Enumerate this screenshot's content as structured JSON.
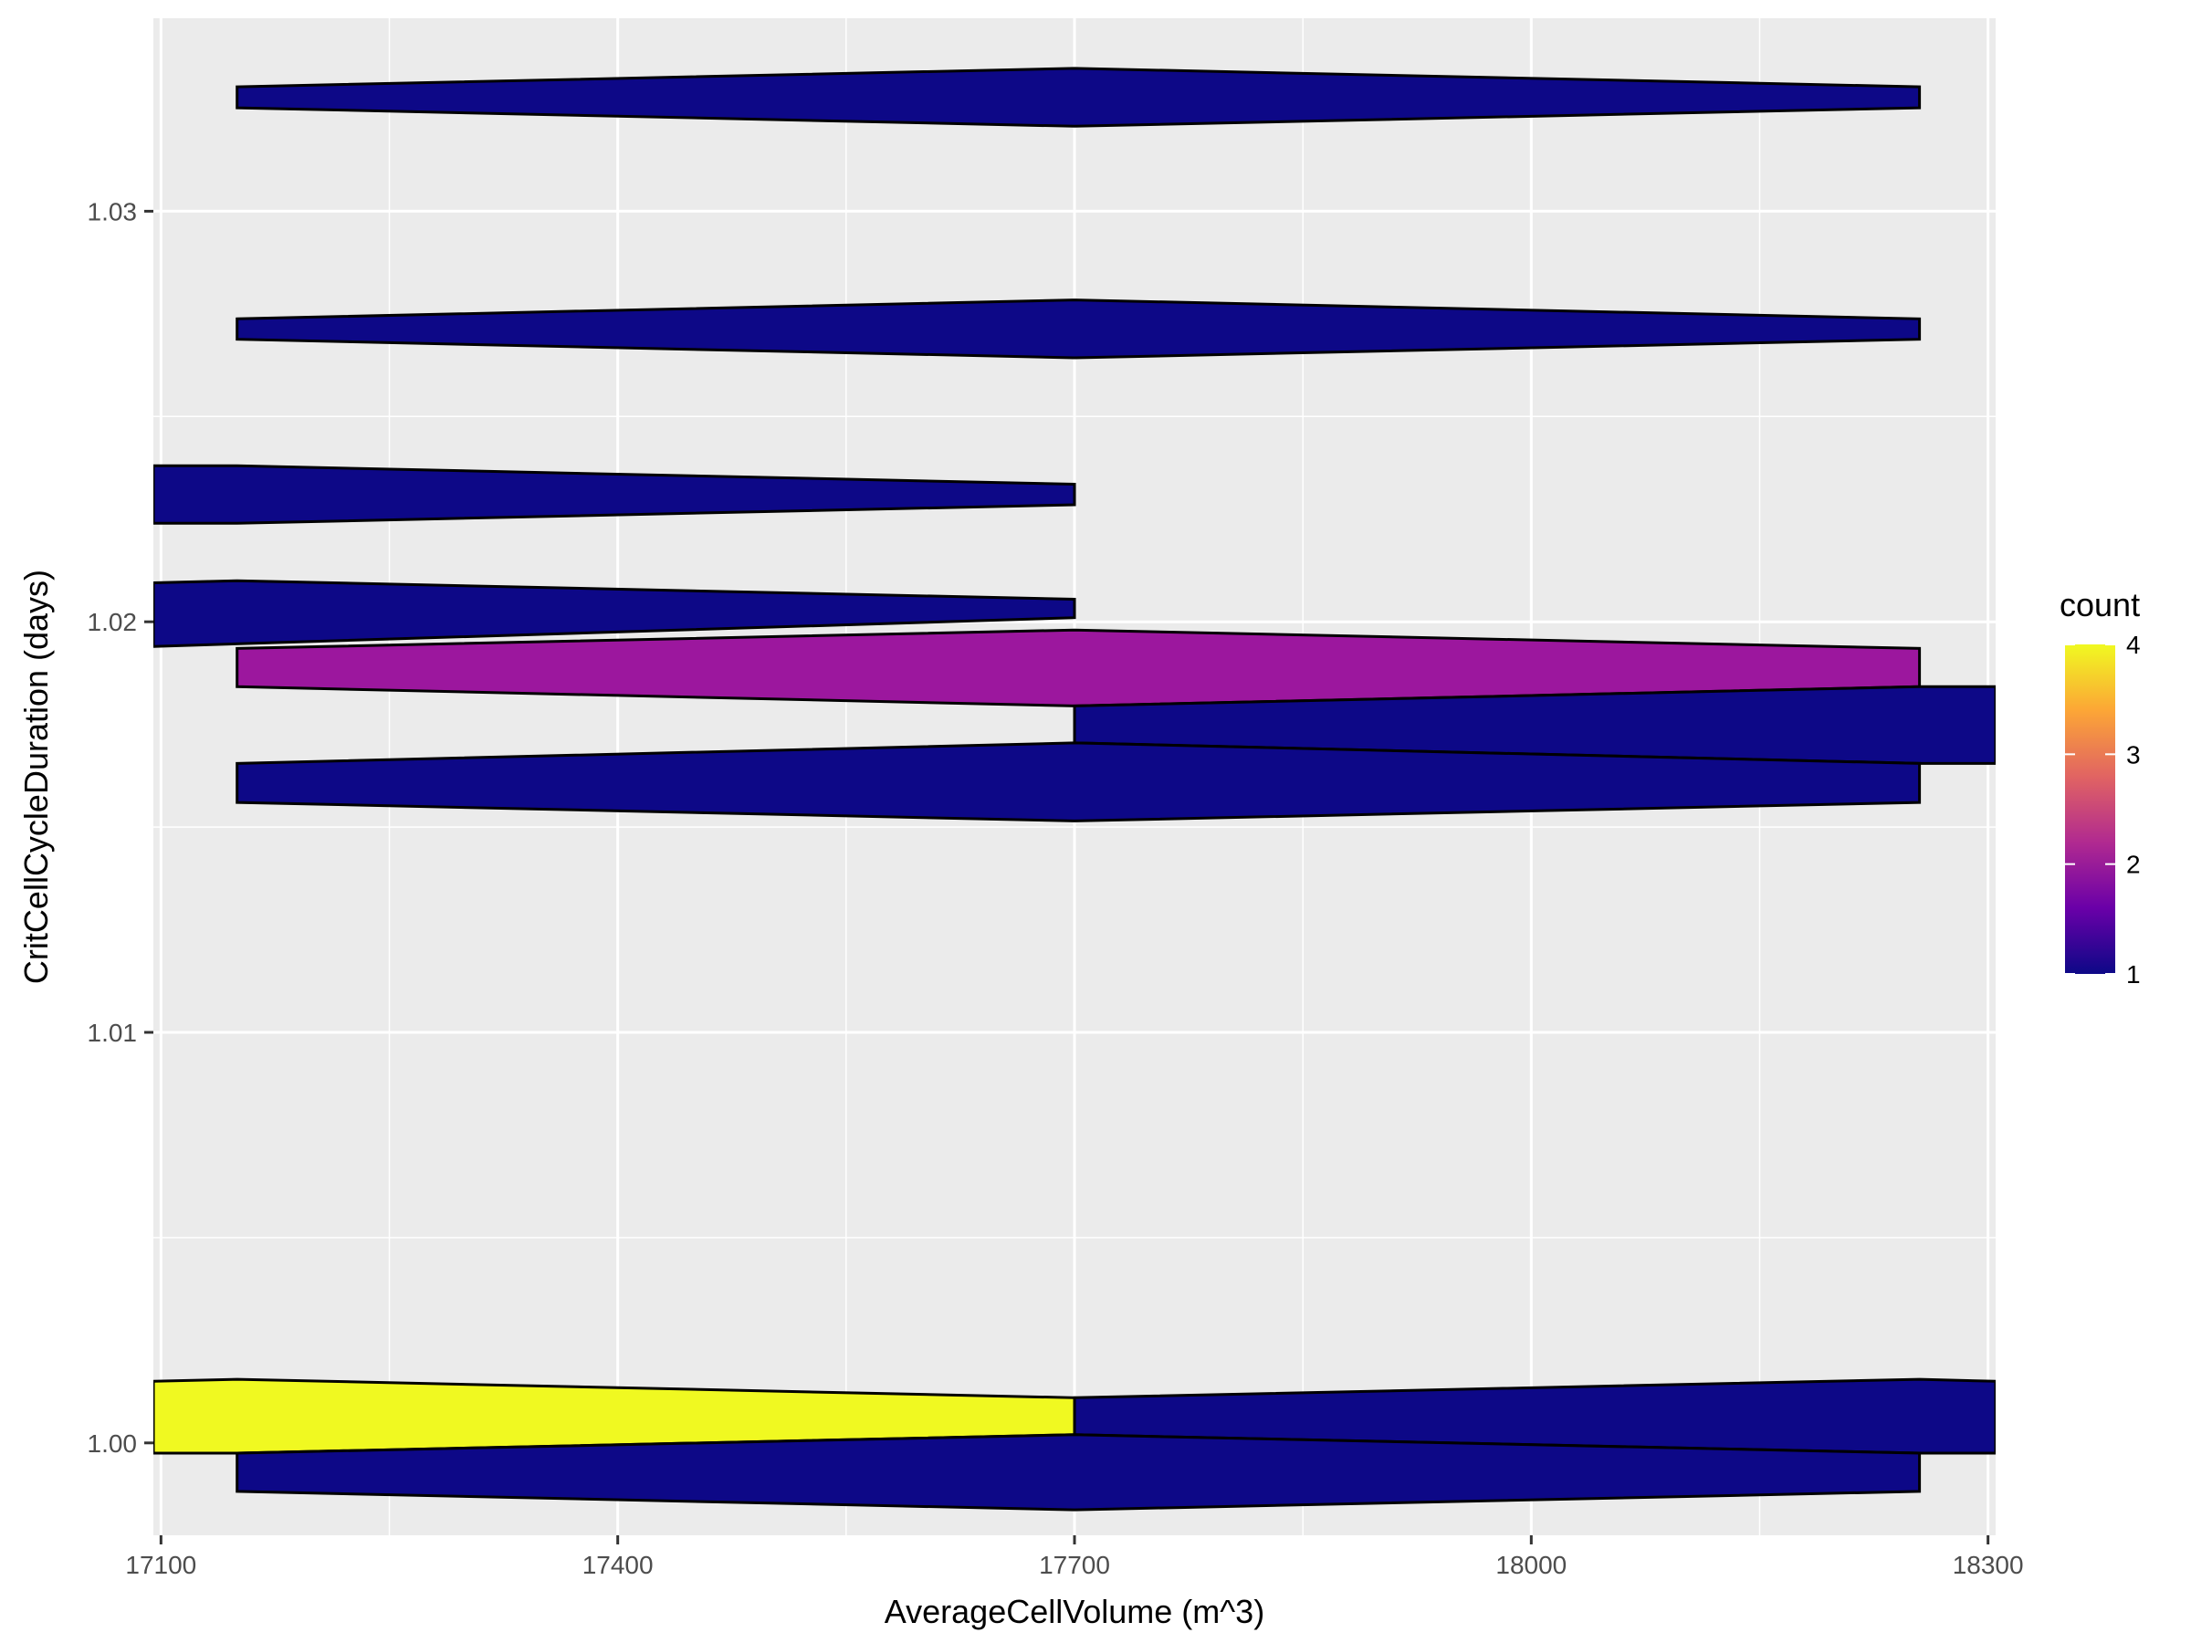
{
  "chart_data": {
    "type": "bin2d",
    "xlabel": "AverageCellVolume (m^3)",
    "ylabel": "CritCellCycleDuration (days)",
    "xlim": [
      17095,
      18305
    ],
    "ylim": [
      0.99775,
      1.0347
    ],
    "x_ticks": [
      {
        "value": 17100,
        "label": "17100"
      },
      {
        "value": 17400,
        "label": "17400"
      },
      {
        "value": 17700,
        "label": "17700"
      },
      {
        "value": 18000,
        "label": "18000"
      },
      {
        "value": 18300,
        "label": "18300"
      }
    ],
    "x_minor_ticks": [
      17250,
      17550,
      17850,
      18150
    ],
    "y_ticks": [
      {
        "value": 1.0,
        "label": "1.00"
      },
      {
        "value": 1.01,
        "label": "1.01"
      },
      {
        "value": 1.02,
        "label": "1.02"
      },
      {
        "value": 1.03,
        "label": "1.03"
      }
    ],
    "y_minor_ticks": [
      1.005,
      1.015,
      1.025
    ],
    "grid": true,
    "legend": {
      "title": "count",
      "position": "right",
      "min": 1,
      "max": 4,
      "breaks": [
        {
          "value": 1,
          "label": "1"
        },
        {
          "value": 2,
          "label": "2"
        },
        {
          "value": 3,
          "label": "3"
        },
        {
          "value": 4,
          "label": "4"
        }
      ]
    },
    "colors": {
      "panel_background": "#ebebeb",
      "grid_major": "#ffffff",
      "grid_minor": "#ffffff",
      "tile_outline": "#000000",
      "axis_ticks": "#333333",
      "gradient": [
        "#0d0887",
        "#6a00a8",
        "#b12a90",
        "#e16462",
        "#fca636",
        "#f0f921"
      ]
    },
    "tiles": [
      {
        "count": 1,
        "fill": "#0d0887",
        "points": [
          [
            17150,
            1.03303
          ],
          [
            17700,
            1.03348
          ],
          [
            18255,
            1.03303
          ],
          [
            18255,
            1.03252
          ],
          [
            17700,
            1.03207
          ],
          [
            17150,
            1.03252
          ]
        ]
      },
      {
        "count": 1,
        "fill": "#0d0887",
        "points": [
          [
            17150,
            1.02738
          ],
          [
            17700,
            1.02784
          ],
          [
            18255,
            1.02738
          ],
          [
            18255,
            1.02688
          ],
          [
            17700,
            1.02643
          ],
          [
            17150,
            1.02688
          ]
        ]
      },
      {
        "count": 1,
        "fill": "#0d0887",
        "points": [
          [
            17095,
            1.0238
          ],
          [
            17150,
            1.0238
          ],
          [
            17700,
            1.02335
          ],
          [
            17700,
            1.02285
          ],
          [
            17150,
            1.0224
          ],
          [
            17095,
            1.0224
          ]
        ]
      },
      {
        "count": 1,
        "fill": "#0d0887",
        "points": [
          [
            17095,
            1.02095
          ],
          [
            17150,
            1.021
          ],
          [
            17700,
            1.02055
          ],
          [
            17700,
            1.0201
          ],
          [
            17095,
            1.0194
          ]
        ]
      },
      {
        "count": 2,
        "fill": "#9c179e",
        "points": [
          [
            17150,
            1.01935
          ],
          [
            17700,
            1.0198
          ],
          [
            18255,
            1.01935
          ],
          [
            18255,
            1.01842
          ],
          [
            17700,
            1.01795
          ],
          [
            17150,
            1.01842
          ]
        ]
      },
      {
        "count": 1,
        "fill": "#0d0887",
        "points": [
          [
            17700,
            1.01795
          ],
          [
            18255,
            1.01842
          ],
          [
            18305,
            1.01842
          ],
          [
            18305,
            1.01655
          ],
          [
            18255,
            1.01655
          ],
          [
            17700,
            1.01705
          ]
        ]
      },
      {
        "count": 1,
        "fill": "#0d0887",
        "points": [
          [
            17150,
            1.01655
          ],
          [
            17700,
            1.01705
          ],
          [
            18255,
            1.01655
          ],
          [
            18255,
            1.0156
          ],
          [
            17700,
            1.01515
          ],
          [
            17150,
            1.0156
          ]
        ]
      },
      {
        "count": 4,
        "fill": "#f0f921",
        "points": [
          [
            17095,
            1.0015
          ],
          [
            17150,
            1.00155
          ],
          [
            17700,
            1.0011
          ],
          [
            17700,
            1.0002
          ],
          [
            17150,
            0.99975
          ],
          [
            17095,
            0.99975
          ]
        ]
      },
      {
        "count": 1,
        "fill": "#0d0887",
        "points": [
          [
            17700,
            1.0011
          ],
          [
            18255,
            1.00155
          ],
          [
            18305,
            1.0015
          ],
          [
            18305,
            0.99975
          ],
          [
            18255,
            0.99975
          ],
          [
            17700,
            1.0002
          ]
        ]
      },
      {
        "count": 1,
        "fill": "#0d0887",
        "points": [
          [
            17150,
            0.99975
          ],
          [
            17700,
            1.0002
          ],
          [
            18255,
            0.99975
          ],
          [
            18255,
            0.99882
          ],
          [
            17700,
            0.99837
          ],
          [
            17150,
            0.99882
          ]
        ]
      }
    ]
  }
}
